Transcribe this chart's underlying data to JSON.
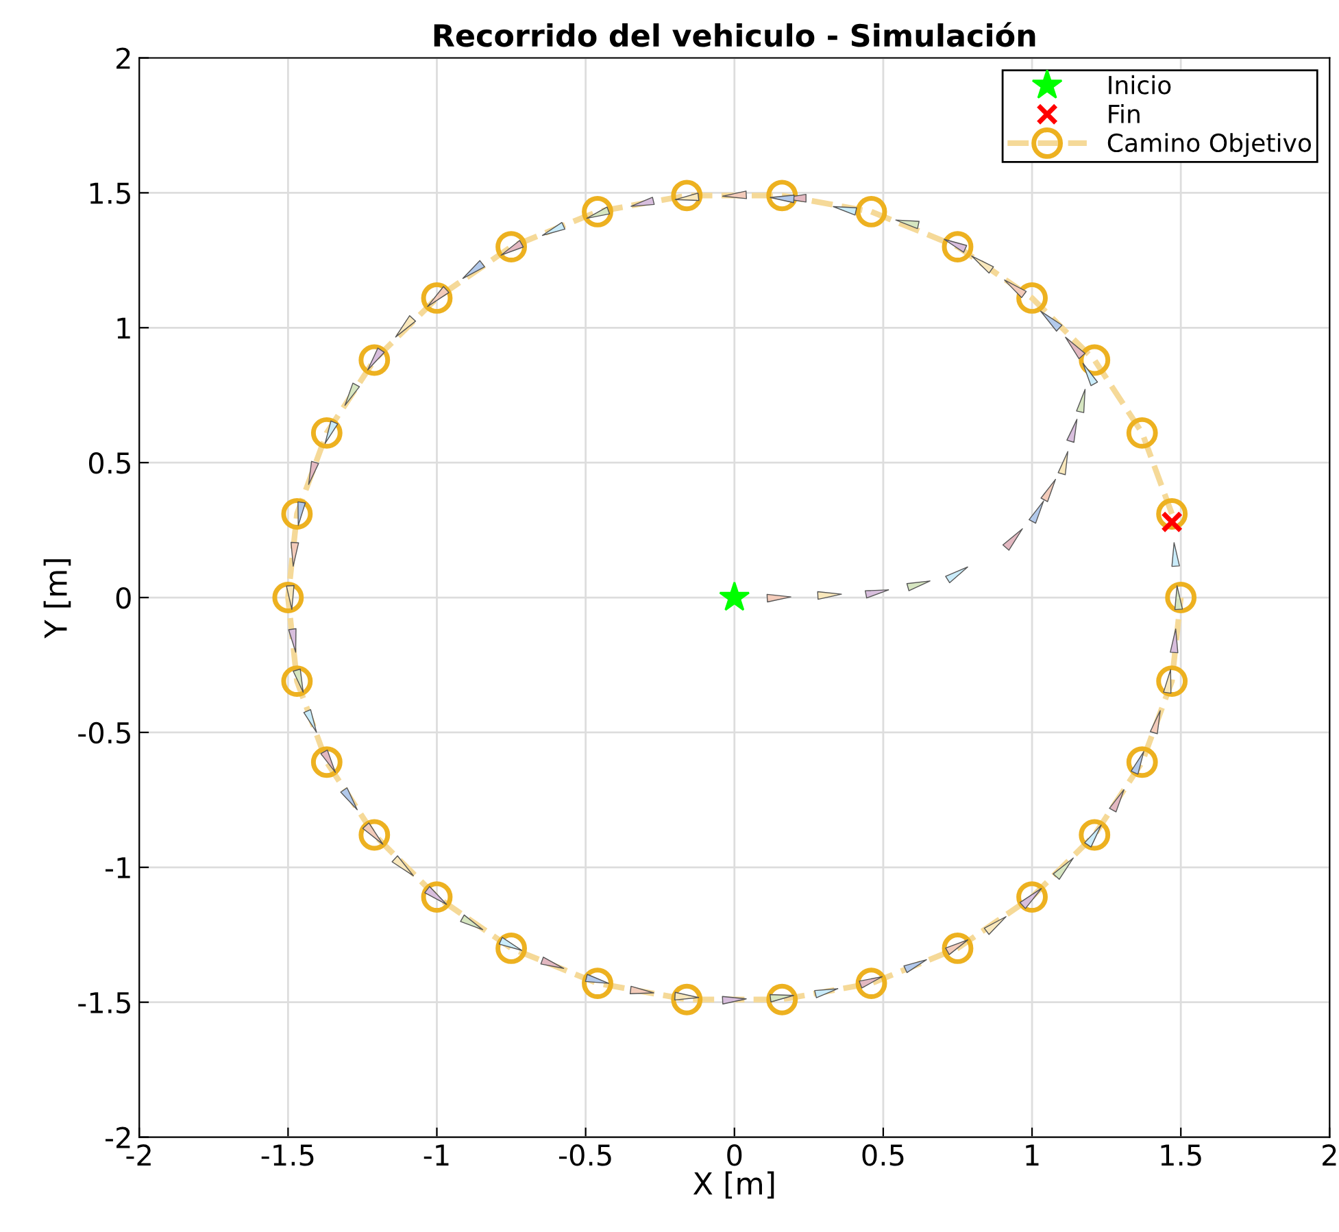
{
  "chart_data": {
    "type": "scatter",
    "title": "Recorrido del vehiculo - Simulación",
    "xlabel": "X [m]",
    "ylabel": "Y [m]",
    "xlim": [
      -2,
      2
    ],
    "ylim": [
      -2,
      2
    ],
    "xticks": [
      -2,
      -1.5,
      -1,
      -0.5,
      0,
      0.5,
      1,
      1.5,
      2
    ],
    "yticks": [
      -2,
      -1.5,
      -1,
      -0.5,
      0,
      0.5,
      1,
      1.5,
      2
    ],
    "grid": true,
    "legend": "top right",
    "series": [
      {
        "marker": "triangle",
        "x": [
          0.15,
          0.32,
          0.48,
          0.62,
          0.75,
          0.94,
          1.02,
          1.06,
          1.11,
          1.14,
          1.17,
          1.19,
          1.14,
          1.06,
          0.94,
          0.83,
          0.74,
          0.58,
          0.37,
          0.2,
          0.16,
          0,
          -0.16,
          -0.31,
          -0.46,
          -0.61,
          -0.75,
          -0.88,
          -1.0,
          -1.11,
          -1.21,
          -1.29,
          -1.36,
          -1.42,
          -1.46,
          -1.48,
          -1.49,
          -1.48,
          -1.46,
          -1.42,
          -1.36,
          -1.29,
          -1.21,
          -1.11,
          -1.0,
          -0.88,
          -0.75,
          -0.61,
          -0.46,
          -0.31,
          -0.16,
          0,
          0.16,
          0.31,
          0.46,
          0.61,
          0.75,
          0.88,
          1.0,
          1.11,
          1.21,
          1.29,
          1.36,
          1.42,
          1.46,
          1.48,
          1.49,
          1.48
        ],
        "values": [
          0.0,
          0.01,
          0.02,
          0.05,
          0.09,
          0.22,
          0.32,
          0.4,
          0.5,
          0.62,
          0.73,
          0.83,
          0.93,
          1.03,
          1.15,
          1.24,
          1.31,
          1.39,
          1.44,
          1.48,
          1.48,
          1.49,
          1.48,
          1.46,
          1.42,
          1.36,
          1.29,
          1.21,
          1.11,
          1.0,
          0.88,
          0.75,
          0.61,
          0.46,
          0.31,
          0.16,
          0,
          -0.16,
          -0.31,
          -0.46,
          -0.61,
          -0.75,
          -0.88,
          -1.0,
          -1.11,
          -1.21,
          -1.29,
          -1.36,
          -1.42,
          -1.46,
          -1.48,
          -1.49,
          -1.48,
          -1.46,
          -1.42,
          -1.36,
          -1.29,
          -1.21,
          -1.11,
          -1.0,
          -0.88,
          -0.75,
          -0.61,
          -0.46,
          -0.31,
          -0.16,
          0,
          0.16
        ],
        "colors": [
          "#f3cbba",
          "#f9e8bc",
          "#d8bedd",
          "#d6e6c1",
          "#caecfa",
          "#e3b8c1",
          "#b2c9eb",
          "#f3cbba",
          "#f9e8bc",
          "#d8bedd",
          "#d6e6c1",
          "#caecfa",
          "#e3b8c1",
          "#b2c9eb",
          "#f3cbba",
          "#f9e8bc",
          "#d8bedd",
          "#d6e6c1",
          "#caecfa",
          "#e3b8c1",
          "#b2c9eb",
          "#f3cbba",
          "#f9e8bc",
          "#d8bedd",
          "#d6e6c1",
          "#caecfa",
          "#e3b8c1",
          "#b2c9eb",
          "#f3cbba",
          "#f9e8bc",
          "#d8bedd",
          "#d6e6c1",
          "#caecfa",
          "#e3b8c1",
          "#b2c9eb",
          "#f3cbba",
          "#f9e8bc",
          "#d8bedd",
          "#d6e6c1",
          "#caecfa",
          "#e3b8c1",
          "#b2c9eb",
          "#f3cbba",
          "#f9e8bc",
          "#d8bedd",
          "#d6e6c1",
          "#caecfa",
          "#e3b8c1",
          "#b2c9eb",
          "#f3cbba",
          "#f9e8bc",
          "#d8bedd",
          "#d6e6c1",
          "#caecfa",
          "#e3b8c1",
          "#b2c9eb",
          "#f3cbba",
          "#f9e8bc",
          "#d8bedd",
          "#d6e6c1",
          "#caecfa",
          "#e3b8c1",
          "#b2c9eb",
          "#f3cbba",
          "#f9e8bc",
          "#d8bedd",
          "#d6e6c1",
          "#caecfa"
        ]
      },
      {
        "type": "scatter",
        "name": "Inicio",
        "color": "#00ff00",
        "marker": "star",
        "x": [
          0
        ],
        "values": [
          0
        ]
      },
      {
        "type": "scatter",
        "name": "Fin",
        "color": "#ff0000",
        "marker": "cross",
        "x": [
          1.47
        ],
        "values": [
          0.28
        ]
      },
      {
        "type": "line",
        "name": "Camino Objetivo",
        "color": "#f5d998",
        "colors": [
          "#edb120",
          "#edb120",
          "#edb120",
          "#edb120",
          "#edb120",
          "#edb120",
          "#edb120",
          "#edb120",
          "#edb120",
          "#edb120",
          "#edb120",
          "#edb120",
          "#edb120",
          "#edb120",
          "#edb120",
          "#edb120",
          "#edb120",
          "#edb120",
          "#edb120",
          "#edb120",
          "#edb120",
          "#edb120",
          "#edb120",
          "#edb120",
          "#edb120",
          "#edb120",
          "#edb120",
          "#edb120",
          "#edb120",
          "#edb120"
        ],
        "marker": "circle",
        "line_style": "dashed",
        "x": [
          1.47,
          1.37,
          1.21,
          1.0,
          0.75,
          0.46,
          0.16,
          -0.16,
          -0.46,
          -0.75,
          -1.0,
          -1.21,
          -1.37,
          -1.47,
          -1.5,
          -1.47,
          -1.37,
          -1.21,
          -1.0,
          -0.75,
          -0.46,
          -0.16,
          0.16,
          0.46,
          0.75,
          1.0,
          1.21,
          1.37,
          1.47,
          1.5
        ],
        "values": [
          0.31,
          0.61,
          0.88,
          1.11,
          1.3,
          1.43,
          1.49,
          1.49,
          1.43,
          1.3,
          1.11,
          0.88,
          0.61,
          0.31,
          0,
          -0.31,
          -0.61,
          -0.88,
          -1.11,
          -1.3,
          -1.43,
          -1.49,
          -1.49,
          -1.43,
          -1.3,
          -1.11,
          -0.88,
          -0.61,
          -0.31,
          0
        ]
      }
    ]
  }
}
